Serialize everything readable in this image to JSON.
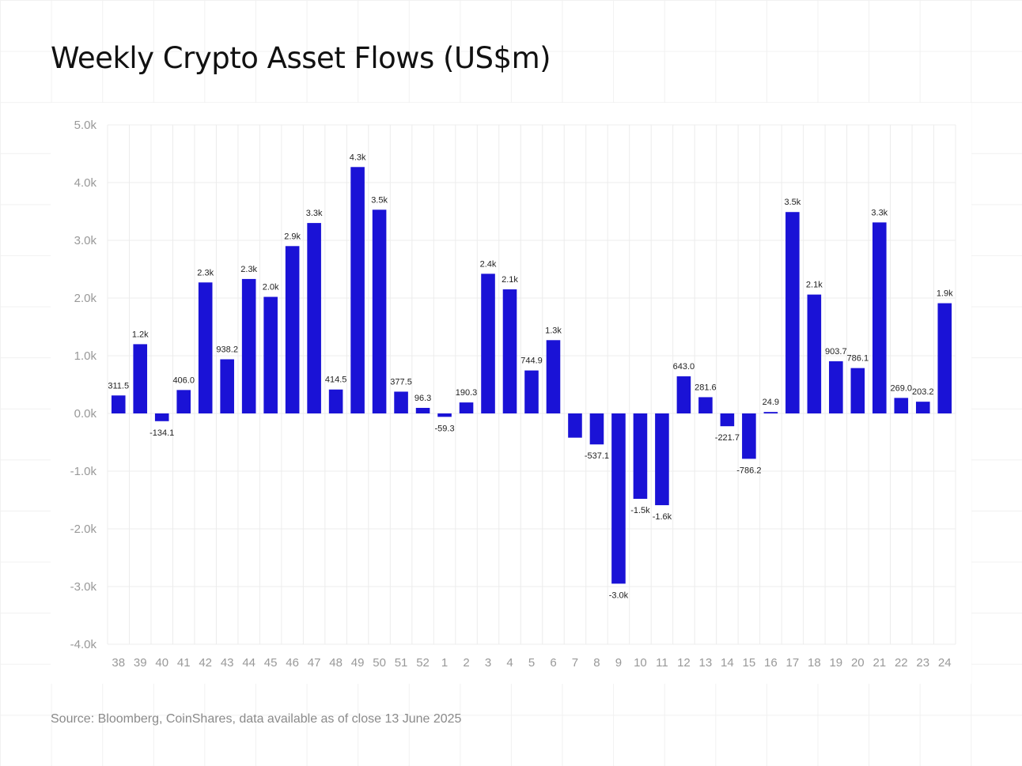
{
  "title": "Weekly Crypto Asset Flows (US$m)",
  "source": "Source: Bloomberg, CoinShares, data available as of close 13 June 2025",
  "colors": {
    "bar": "#1a12d6",
    "grid": "#ececec",
    "tick_text": "#999999",
    "label_text": "#222222"
  },
  "chart_data": {
    "type": "bar",
    "title": "Weekly Crypto Asset Flows (US$m)",
    "xlabel": "",
    "ylabel": "",
    "ylim": [
      -4000,
      5000
    ],
    "y_ticks": [
      5000,
      4000,
      3000,
      2000,
      1000,
      0,
      -1000,
      -2000,
      -3000,
      -4000
    ],
    "y_tick_labels": [
      "5.0k",
      "4.0k",
      "3.0k",
      "2.0k",
      "1.0k",
      "0.0k",
      "-1.0k",
      "-2.0k",
      "-3.0k",
      "-4.0k"
    ],
    "grid": true,
    "categories": [
      "38",
      "39",
      "40",
      "41",
      "42",
      "43",
      "44",
      "45",
      "46",
      "47",
      "48",
      "49",
      "50",
      "51",
      "52",
      "1",
      "2",
      "3",
      "4",
      "5",
      "6",
      "7",
      "8",
      "9",
      "10",
      "11",
      "12",
      "13",
      "14",
      "15",
      "16",
      "17",
      "18",
      "19",
      "20",
      "21",
      "22",
      "23",
      "24"
    ],
    "values": [
      311.5,
      1200,
      -134.1,
      406.0,
      2270,
      938.2,
      2330,
      2020,
      2900,
      3300,
      414.5,
      4270,
      3530,
      377.5,
      96.3,
      -59.3,
      190.3,
      2420,
      2150,
      744.9,
      1270,
      -420,
      -537.1,
      -2950,
      -1480,
      -1590,
      643.0,
      281.6,
      -221.7,
      -786.2,
      24.9,
      3490,
      2060,
      903.7,
      786.1,
      3310,
      269.0,
      203.2,
      1910
    ],
    "data_labels": [
      "311.5",
      "1.2k",
      "-134.1",
      "406.0",
      "2.3k",
      "938.2",
      "2.3k",
      "2.0k",
      "2.9k",
      "3.3k",
      "414.5",
      "4.3k",
      "3.5k",
      "377.5",
      "96.3",
      "-59.3",
      "190.3",
      "2.4k",
      "2.1k",
      "744.9",
      "1.3k",
      "",
      "-537.1",
      "-3.0k",
      "-1.5k",
      "-1.6k",
      "643.0",
      "281.6",
      "-221.7",
      "-786.2",
      "24.9",
      "3.5k",
      "2.1k",
      "903.7",
      "786.1",
      "3.3k",
      "269.0",
      "203.2",
      "1.9k"
    ]
  }
}
